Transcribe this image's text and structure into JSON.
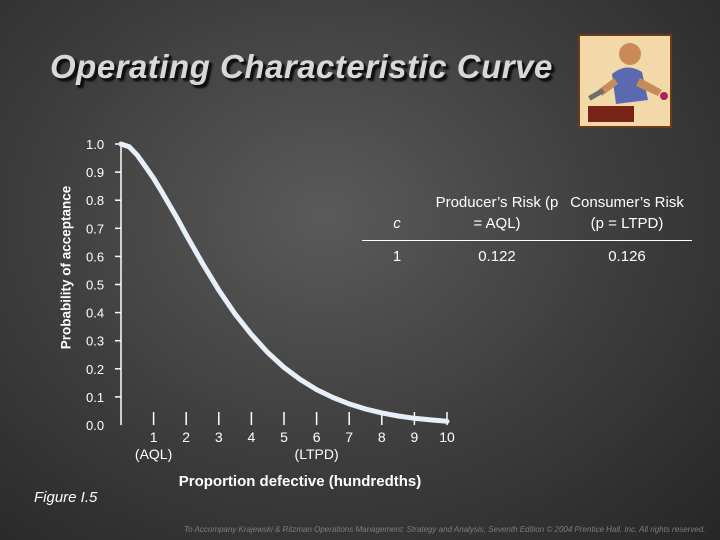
{
  "title": "Operating Characteristic Curve",
  "figure_label": "Figure I.5",
  "footer": "To Accompany Krajewski & Ritzman Operations Management: Strategy and Analysis, Seventh Edition © 2004 Prentice Hall, Inc. All rights reserved.",
  "clipart_icon": "worker-wrench-icon",
  "risk_table": {
    "headers": [
      "c",
      "Producer’s Risk (p = AQL)",
      "Consumer’s Risk (p = LTPD)"
    ],
    "rows": [
      [
        "1",
        "0.122",
        "0.126"
      ]
    ]
  },
  "chart_data": {
    "type": "line",
    "title": "Operating Characteristic Curve",
    "xlabel": "Proportion defective (hundredths)",
    "ylabel": "Probability of acceptance",
    "xlim": [
      0,
      10
    ],
    "ylim": [
      0,
      1
    ],
    "x_ticks": [
      "1",
      "2",
      "3",
      "4",
      "5",
      "6",
      "7",
      "8",
      "9",
      "10"
    ],
    "x_tick_sublabels": [
      {
        "x": 1,
        "text": "(AQL)"
      },
      {
        "x": 6,
        "text": "(LTPD)"
      }
    ],
    "y_ticks": [
      "0.0",
      "0.1",
      "0.2",
      "0.3",
      "0.4",
      "0.5",
      "0.6",
      "0.7",
      "0.8",
      "0.9",
      "1.0"
    ],
    "grid": false,
    "curve_color": "#e6effa",
    "series": [
      {
        "x": [
          0,
          0.25,
          0.5,
          0.75,
          1,
          1.25,
          1.5,
          1.75,
          2,
          2.5,
          3,
          3.5,
          4,
          4.5,
          5,
          5.5,
          6,
          6.5,
          7,
          7.5,
          8,
          8.5,
          9,
          9.5,
          10
        ],
        "values": [
          1.0,
          0.99,
          0.96,
          0.92,
          0.878,
          0.83,
          0.78,
          0.73,
          0.677,
          0.575,
          0.48,
          0.395,
          0.322,
          0.258,
          0.205,
          0.162,
          0.126,
          0.098,
          0.075,
          0.057,
          0.043,
          0.032,
          0.024,
          0.018,
          0.013
        ]
      }
    ]
  }
}
